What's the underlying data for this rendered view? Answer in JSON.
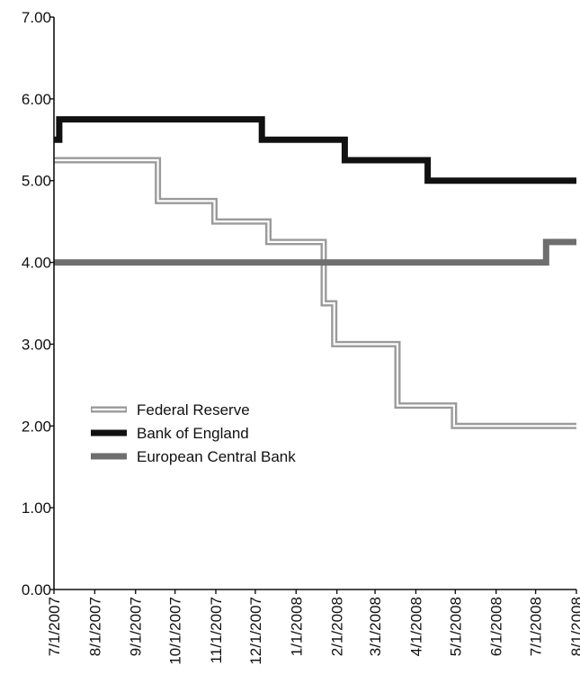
{
  "chart_data": {
    "type": "line",
    "step": true,
    "title": "",
    "xlabel": "",
    "ylabel": "",
    "ylim": [
      0,
      7
    ],
    "y_ticks": [
      "0.00",
      "1.00",
      "2.00",
      "3.00",
      "4.00",
      "5.00",
      "6.00",
      "7.00"
    ],
    "x_ticks": [
      "7/1/2007",
      "8/1/2007",
      "9/1/2007",
      "10/1/2007",
      "11/1/2007",
      "12/1/2007",
      "1/1/2008",
      "2/1/2008",
      "3/1/2008",
      "4/1/2008",
      "5/1/2008",
      "6/1/2008",
      "7/1/2008",
      "8/1/2008"
    ],
    "xlim": [
      "2007-07-01",
      "2008-08-01"
    ],
    "grid": false,
    "legend_position": "middle-left",
    "series": [
      {
        "name": "Federal Reserve",
        "style": "double-line",
        "color": "#9a9a9a",
        "points": [
          {
            "date": "2007-07-01",
            "value": 5.25
          },
          {
            "date": "2007-09-18",
            "value": 4.75
          },
          {
            "date": "2007-10-31",
            "value": 4.5
          },
          {
            "date": "2007-12-11",
            "value": 4.25
          },
          {
            "date": "2008-01-22",
            "value": 3.5
          },
          {
            "date": "2008-01-30",
            "value": 3.0
          },
          {
            "date": "2008-03-18",
            "value": 2.25
          },
          {
            "date": "2008-04-30",
            "value": 2.0
          },
          {
            "date": "2008-08-01",
            "value": 2.0
          }
        ]
      },
      {
        "name": "Bank of England",
        "style": "solid",
        "color": "#111111",
        "points": [
          {
            "date": "2007-07-01",
            "value": 5.5
          },
          {
            "date": "2007-07-05",
            "value": 5.75
          },
          {
            "date": "2007-12-06",
            "value": 5.5
          },
          {
            "date": "2008-02-07",
            "value": 5.25
          },
          {
            "date": "2008-04-10",
            "value": 5.0
          },
          {
            "date": "2008-08-01",
            "value": 5.0
          }
        ]
      },
      {
        "name": "European Central Bank",
        "style": "solid",
        "color": "#6e6e6e",
        "points": [
          {
            "date": "2007-07-01",
            "value": 4.0
          },
          {
            "date": "2008-07-09",
            "value": 4.25
          },
          {
            "date": "2008-08-01",
            "value": 4.25
          }
        ]
      }
    ]
  }
}
